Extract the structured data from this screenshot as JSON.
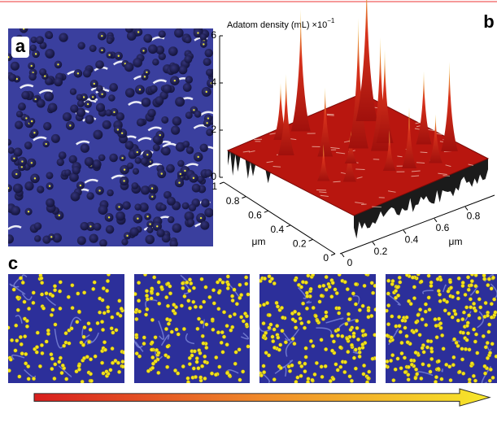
{
  "panels": {
    "a": {
      "label": "a"
    },
    "b": {
      "label": "b",
      "z_axis": {
        "title": "Adatom density (mL) ×10",
        "exponent": "−1",
        "ticks": [
          0,
          2,
          4,
          6
        ]
      },
      "y_axis": {
        "ticks": [
          1,
          0.8,
          0.6,
          0.4,
          0.2,
          0
        ],
        "unit": "μm"
      },
      "x_axis": {
        "ticks": [
          0,
          0.2,
          0.4,
          0.6,
          0.8
        ],
        "unit": "μm"
      }
    },
    "c": {
      "label": "c"
    }
  }
}
